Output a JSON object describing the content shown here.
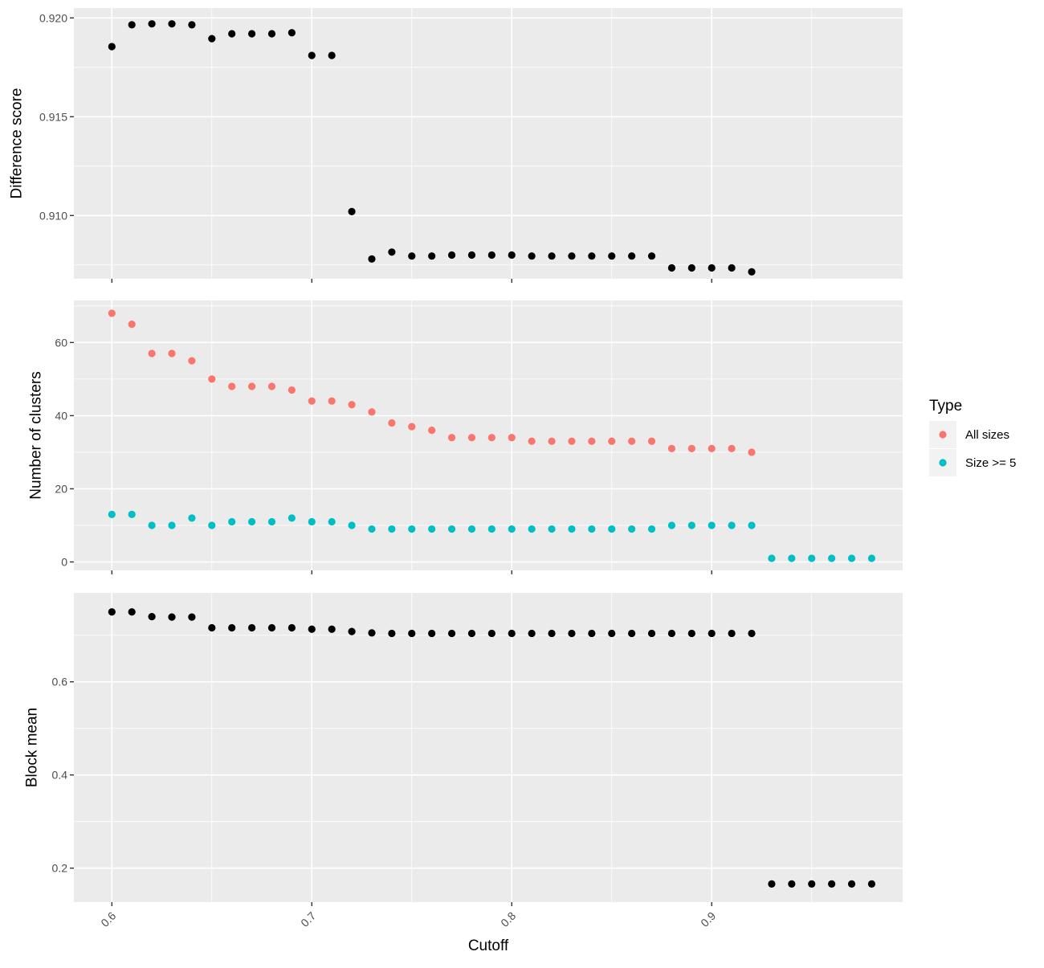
{
  "chart_data": [
    {
      "type": "scatter",
      "ylabel": "Difference score",
      "xlabel": "",
      "ylim": [
        0.9068,
        0.9205
      ],
      "yticks": [
        0.91,
        0.915,
        0.92
      ],
      "ytick_labels": [
        "0.910",
        "0.915",
        "0.920"
      ],
      "xlim": [
        0.581,
        0.9955
      ],
      "xticks": [
        0.6,
        0.7,
        0.8,
        0.9
      ],
      "grid": true,
      "series": [
        {
          "color": "#000000",
          "x": [
            0.6,
            0.61,
            0.62,
            0.63,
            0.64,
            0.65,
            0.66,
            0.67,
            0.68,
            0.69,
            0.7,
            0.71,
            0.72,
            0.73,
            0.74,
            0.75,
            0.76,
            0.77,
            0.78,
            0.79,
            0.8,
            0.81,
            0.82,
            0.83,
            0.84,
            0.85,
            0.86,
            0.87,
            0.88,
            0.89,
            0.9,
            0.91,
            0.92
          ],
          "y": [
            0.91855,
            0.91965,
            0.9197,
            0.9197,
            0.91965,
            0.91895,
            0.9192,
            0.9192,
            0.9192,
            0.91925,
            0.9181,
            0.9181,
            0.9102,
            0.9078,
            0.90815,
            0.90795,
            0.90795,
            0.908,
            0.908,
            0.908,
            0.908,
            0.90795,
            0.90795,
            0.90795,
            0.90795,
            0.90795,
            0.90795,
            0.90795,
            0.90735,
            0.90735,
            0.90735,
            0.90735,
            0.90715
          ]
        }
      ]
    },
    {
      "type": "scatter",
      "ylabel": "Number of clusters",
      "xlabel": "",
      "ylim": [
        -2.3,
        71.5
      ],
      "yticks": [
        0,
        20,
        40,
        60
      ],
      "ytick_labels": [
        "0",
        "20",
        "40",
        "60"
      ],
      "xlim": [
        0.581,
        0.9955
      ],
      "xticks": [
        0.6,
        0.7,
        0.8,
        0.9
      ],
      "grid": true,
      "legend": {
        "title": "Type",
        "position": "right",
        "entries": [
          "All sizes",
          "Size >= 5"
        ]
      },
      "series": [
        {
          "name": "All sizes",
          "color": "#F8766D",
          "x": [
            0.6,
            0.61,
            0.62,
            0.63,
            0.64,
            0.65,
            0.66,
            0.67,
            0.68,
            0.69,
            0.7,
            0.71,
            0.72,
            0.73,
            0.74,
            0.75,
            0.76,
            0.77,
            0.78,
            0.79,
            0.8,
            0.81,
            0.82,
            0.83,
            0.84,
            0.85,
            0.86,
            0.87,
            0.88,
            0.89,
            0.9,
            0.91,
            0.92
          ],
          "y": [
            68,
            65,
            57,
            57,
            55,
            50,
            48,
            48,
            48,
            47,
            44,
            44,
            43,
            41,
            38,
            37,
            36,
            34,
            34,
            34,
            34,
            33,
            33,
            33,
            33,
            33,
            33,
            33,
            31,
            31,
            31,
            31,
            30
          ]
        },
        {
          "name": "Size >= 5",
          "color": "#00BFC4",
          "x": [
            0.6,
            0.61,
            0.62,
            0.63,
            0.64,
            0.65,
            0.66,
            0.67,
            0.68,
            0.69,
            0.7,
            0.71,
            0.72,
            0.73,
            0.74,
            0.75,
            0.76,
            0.77,
            0.78,
            0.79,
            0.8,
            0.81,
            0.82,
            0.83,
            0.84,
            0.85,
            0.86,
            0.87,
            0.88,
            0.89,
            0.9,
            0.91,
            0.92,
            0.93,
            0.94,
            0.95,
            0.96,
            0.97,
            0.98
          ],
          "y": [
            13,
            13,
            10,
            10,
            12,
            10,
            11,
            11,
            11,
            12,
            11,
            11,
            10,
            9,
            9,
            9,
            9,
            9,
            9,
            9,
            9,
            9,
            9,
            9,
            9,
            9,
            9,
            9,
            10,
            10,
            10,
            10,
            10,
            1,
            1,
            1,
            1,
            1,
            1
          ]
        }
      ]
    },
    {
      "type": "scatter",
      "ylabel": "Block mean",
      "xlabel": "Cutoff",
      "ylim": [
        0.127,
        0.791
      ],
      "yticks": [
        0.2,
        0.4,
        0.6
      ],
      "ytick_labels": [
        "0.2",
        "0.4",
        "0.6"
      ],
      "xlim": [
        0.581,
        0.9955
      ],
      "xticks": [
        0.6,
        0.7,
        0.8,
        0.9
      ],
      "xtick_labels": [
        "0.6",
        "0.7",
        "0.8",
        "0.9"
      ],
      "grid": true,
      "series": [
        {
          "color": "#000000",
          "x": [
            0.6,
            0.61,
            0.62,
            0.63,
            0.64,
            0.65,
            0.66,
            0.67,
            0.68,
            0.69,
            0.7,
            0.71,
            0.72,
            0.73,
            0.74,
            0.75,
            0.76,
            0.77,
            0.78,
            0.79,
            0.8,
            0.81,
            0.82,
            0.83,
            0.84,
            0.85,
            0.86,
            0.87,
            0.88,
            0.89,
            0.9,
            0.91,
            0.92,
            0.93,
            0.94,
            0.95,
            0.96,
            0.97,
            0.98
          ],
          "y": [
            0.75,
            0.75,
            0.74,
            0.739,
            0.739,
            0.716,
            0.716,
            0.716,
            0.716,
            0.716,
            0.713,
            0.713,
            0.708,
            0.705,
            0.704,
            0.704,
            0.704,
            0.704,
            0.704,
            0.704,
            0.704,
            0.704,
            0.704,
            0.704,
            0.704,
            0.704,
            0.704,
            0.704,
            0.704,
            0.704,
            0.704,
            0.704,
            0.704,
            0.166,
            0.166,
            0.166,
            0.166,
            0.166,
            0.166
          ]
        }
      ]
    }
  ]
}
